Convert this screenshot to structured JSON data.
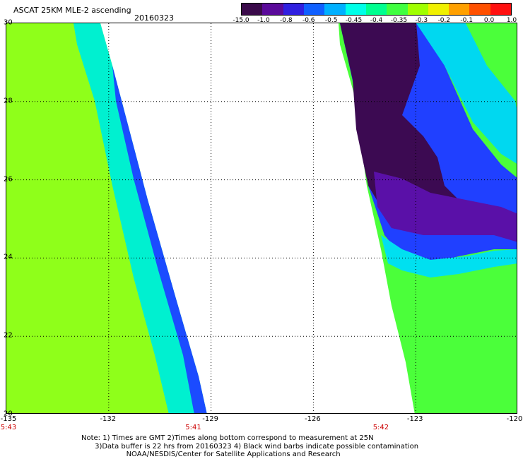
{
  "header": {
    "title": "ASCAT 25KM MLE-2 ascending",
    "date": "20160323"
  },
  "colorbar": {
    "labels": [
      "-15.0",
      "-1.0",
      "-0.8",
      "-0.6",
      "-0.5",
      "-0.45",
      "-0.4",
      "-0.35",
      "-0.3",
      "-0.2",
      "-0.1",
      "0.0",
      "1.0"
    ],
    "colors": [
      "#3a0a4a",
      "#5a0a9a",
      "#3020e0",
      "#1060ff",
      "#00b0ff",
      "#00ffe8",
      "#00ff90",
      "#40ff40",
      "#a0ff00",
      "#f0f000",
      "#ffa000",
      "#ff5000",
      "#ff1010"
    ]
  },
  "axes": {
    "lon_labels": [
      "-135",
      "-132",
      "-129",
      "-126",
      "-123",
      "-120"
    ],
    "lat_labels": [
      "30",
      "28",
      "26",
      "24",
      "22",
      "20"
    ],
    "lon_range": [
      -135,
      -120
    ],
    "lat_range": [
      20,
      30
    ]
  },
  "swath_times": [
    {
      "lon": -135,
      "label": "5:43"
    },
    {
      "lon": -129.5,
      "label": "5:41"
    },
    {
      "lon": -124,
      "label": "5:42"
    }
  ],
  "note": {
    "line1": "Note: 1) Times are GMT 2)Times along bottom correspond to measurement at 25N",
    "line2": "3)Data buffer is 22 hrs from 20160323 4) Black wind barbs indicate possible contamination",
    "line3": "NOAA/NESDIS/Center for Satellite Applications and Research"
  }
}
